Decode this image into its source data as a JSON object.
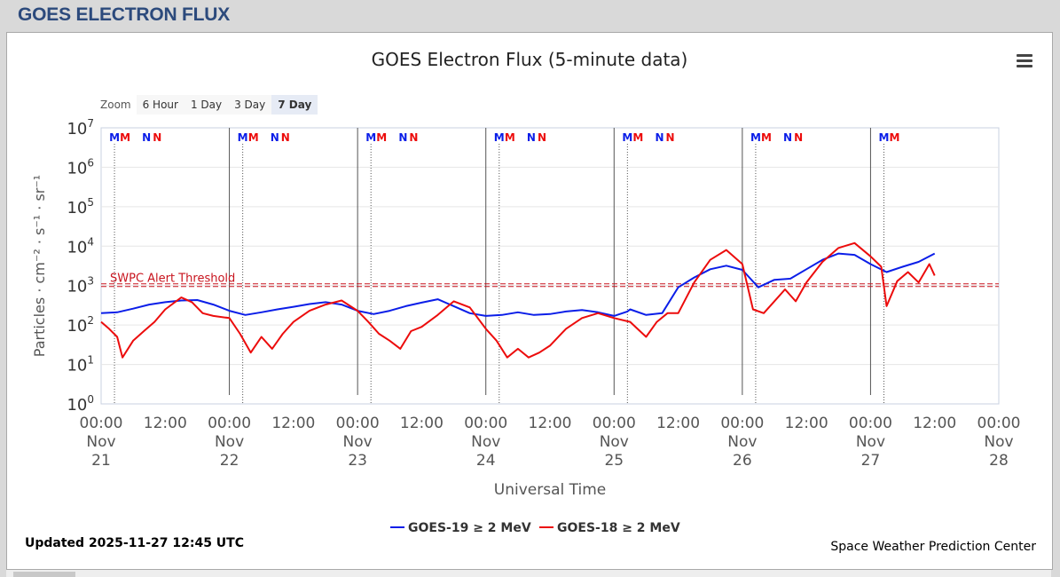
{
  "page": {
    "title": "GOES ELECTRON FLUX"
  },
  "chart": {
    "title": "GOES Electron Flux (5-minute data)",
    "updated": "Updated 2025-11-27 12:45 UTC",
    "credit": "Space Weather Prediction Center"
  },
  "zoom": {
    "label": "Zoom",
    "buttons": [
      "6 Hour",
      "1 Day",
      "3 Day",
      "7 Day"
    ],
    "active": "7 Day"
  },
  "colors": {
    "goes19": "#0b1ee8",
    "goes18": "#ec0c0c",
    "threshold": "#c8141e",
    "title": "#2c4a7c"
  },
  "chart_data": {
    "type": "line",
    "title": "GOES Electron Flux (5-minute data)",
    "xlabel": "Universal Time",
    "ylabel": "Particles · cm⁻² · s⁻¹ · sr⁻¹",
    "y_scale": "log",
    "ylim": [
      1,
      10000000
    ],
    "y_ticks": [
      {
        "base": "10",
        "exp": "0"
      },
      {
        "base": "10",
        "exp": "1"
      },
      {
        "base": "10",
        "exp": "2"
      },
      {
        "base": "10",
        "exp": "3"
      },
      {
        "base": "10",
        "exp": "4"
      },
      {
        "base": "10",
        "exp": "5"
      },
      {
        "base": "10",
        "exp": "6"
      },
      {
        "base": "10",
        "exp": "7"
      }
    ],
    "xlim": [
      "2025-11-21 00:00",
      "2025-11-28 00:00"
    ],
    "x_ticks": [
      {
        "t": "2025-11-21 00:00",
        "time": "00:00",
        "month": "Nov",
        "day": "21"
      },
      {
        "t": "2025-11-21 12:00",
        "time": "12:00"
      },
      {
        "t": "2025-11-22 00:00",
        "time": "00:00",
        "month": "Nov",
        "day": "22"
      },
      {
        "t": "2025-11-22 12:00",
        "time": "12:00"
      },
      {
        "t": "2025-11-23 00:00",
        "time": "00:00",
        "month": "Nov",
        "day": "23"
      },
      {
        "t": "2025-11-23 12:00",
        "time": "12:00"
      },
      {
        "t": "2025-11-24 00:00",
        "time": "00:00",
        "month": "Nov",
        "day": "24"
      },
      {
        "t": "2025-11-24 12:00",
        "time": "12:00"
      },
      {
        "t": "2025-11-25 00:00",
        "time": "00:00",
        "month": "Nov",
        "day": "25"
      },
      {
        "t": "2025-11-25 12:00",
        "time": "12:00"
      },
      {
        "t": "2025-11-26 00:00",
        "time": "00:00",
        "month": "Nov",
        "day": "26"
      },
      {
        "t": "2025-11-26 12:00",
        "time": "12:00"
      },
      {
        "t": "2025-11-27 00:00",
        "time": "00:00",
        "month": "Nov",
        "day": "27"
      },
      {
        "t": "2025-11-27 12:00",
        "time": "12:00"
      },
      {
        "t": "2025-11-28 00:00",
        "time": "00:00",
        "month": "Nov",
        "day": "28"
      }
    ],
    "threshold": {
      "label": "SWPC Alert Threshold",
      "value": 1000
    },
    "markers": [
      {
        "label": "M",
        "color": "#0b1ee8",
        "t": "2025-11-21 02:30"
      },
      {
        "label": "M",
        "color": "#ec0c0c",
        "t": "2025-11-21 04:30"
      },
      {
        "label": "N",
        "color": "#0b1ee8",
        "t": "2025-11-21 08:30"
      },
      {
        "label": "N",
        "color": "#ec0c0c",
        "t": "2025-11-21 10:30"
      },
      {
        "label": "M",
        "color": "#0b1ee8",
        "t": "2025-11-22 02:30"
      },
      {
        "label": "M",
        "color": "#ec0c0c",
        "t": "2025-11-22 04:30"
      },
      {
        "label": "N",
        "color": "#0b1ee8",
        "t": "2025-11-22 08:30"
      },
      {
        "label": "N",
        "color": "#ec0c0c",
        "t": "2025-11-22 10:30"
      },
      {
        "label": "M",
        "color": "#0b1ee8",
        "t": "2025-11-23 02:30"
      },
      {
        "label": "M",
        "color": "#ec0c0c",
        "t": "2025-11-23 04:30"
      },
      {
        "label": "N",
        "color": "#0b1ee8",
        "t": "2025-11-23 08:30"
      },
      {
        "label": "N",
        "color": "#ec0c0c",
        "t": "2025-11-23 10:30"
      },
      {
        "label": "M",
        "color": "#0b1ee8",
        "t": "2025-11-24 02:30"
      },
      {
        "label": "M",
        "color": "#ec0c0c",
        "t": "2025-11-24 04:30"
      },
      {
        "label": "N",
        "color": "#0b1ee8",
        "t": "2025-11-24 08:30"
      },
      {
        "label": "N",
        "color": "#ec0c0c",
        "t": "2025-11-24 10:30"
      },
      {
        "label": "M",
        "color": "#0b1ee8",
        "t": "2025-11-25 02:30"
      },
      {
        "label": "M",
        "color": "#ec0c0c",
        "t": "2025-11-25 04:30"
      },
      {
        "label": "N",
        "color": "#0b1ee8",
        "t": "2025-11-25 08:30"
      },
      {
        "label": "N",
        "color": "#ec0c0c",
        "t": "2025-11-25 10:30"
      },
      {
        "label": "M",
        "color": "#0b1ee8",
        "t": "2025-11-26 02:30"
      },
      {
        "label": "M",
        "color": "#ec0c0c",
        "t": "2025-11-26 04:30"
      },
      {
        "label": "N",
        "color": "#0b1ee8",
        "t": "2025-11-26 08:30"
      },
      {
        "label": "N",
        "color": "#ec0c0c",
        "t": "2025-11-26 10:30"
      },
      {
        "label": "M",
        "color": "#0b1ee8",
        "t": "2025-11-27 02:30"
      },
      {
        "label": "M",
        "color": "#ec0c0c",
        "t": "2025-11-27 04:30"
      }
    ],
    "series": [
      {
        "name": "GOES-19 ≥ 2 MeV",
        "color": "#0b1ee8",
        "points": [
          [
            "2025-11-21 00:00",
            200
          ],
          [
            "2025-11-21 03:00",
            210
          ],
          [
            "2025-11-21 06:00",
            260
          ],
          [
            "2025-11-21 09:00",
            330
          ],
          [
            "2025-11-21 12:00",
            380
          ],
          [
            "2025-11-21 15:00",
            420
          ],
          [
            "2025-11-21 18:00",
            430
          ],
          [
            "2025-11-21 21:00",
            330
          ],
          [
            "2025-11-22 00:00",
            230
          ],
          [
            "2025-11-22 03:00",
            180
          ],
          [
            "2025-11-22 06:00",
            210
          ],
          [
            "2025-11-22 09:00",
            250
          ],
          [
            "2025-11-22 12:00",
            290
          ],
          [
            "2025-11-22 15:00",
            340
          ],
          [
            "2025-11-22 18:00",
            380
          ],
          [
            "2025-11-22 21:00",
            330
          ],
          [
            "2025-11-23 00:00",
            230
          ],
          [
            "2025-11-23 03:00",
            190
          ],
          [
            "2025-11-23 06:00",
            230
          ],
          [
            "2025-11-23 09:00",
            300
          ],
          [
            "2025-11-23 12:00",
            370
          ],
          [
            "2025-11-23 15:00",
            450
          ],
          [
            "2025-11-23 18:00",
            300
          ],
          [
            "2025-11-23 21:00",
            200
          ],
          [
            "2025-11-24 00:00",
            170
          ],
          [
            "2025-11-24 03:00",
            180
          ],
          [
            "2025-11-24 06:00",
            210
          ],
          [
            "2025-11-24 09:00",
            180
          ],
          [
            "2025-11-24 12:00",
            190
          ],
          [
            "2025-11-24 15:00",
            220
          ],
          [
            "2025-11-24 18:00",
            240
          ],
          [
            "2025-11-24 21:00",
            210
          ],
          [
            "2025-11-25 00:00",
            170
          ],
          [
            "2025-11-25 02:30",
            220
          ],
          [
            "2025-11-25 03:00",
            250
          ],
          [
            "2025-11-25 06:00",
            180
          ],
          [
            "2025-11-25 09:00",
            200
          ],
          [
            "2025-11-25 12:00",
            900
          ],
          [
            "2025-11-25 15:00",
            1600
          ],
          [
            "2025-11-25 18:00",
            2600
          ],
          [
            "2025-11-25 21:00",
            3200
          ],
          [
            "2025-11-26 00:00",
            2500
          ],
          [
            "2025-11-26 03:00",
            900
          ],
          [
            "2025-11-26 06:00",
            1400
          ],
          [
            "2025-11-26 09:00",
            1500
          ],
          [
            "2025-11-26 12:00",
            2600
          ],
          [
            "2025-11-26 15:00",
            4500
          ],
          [
            "2025-11-26 18:00",
            6500
          ],
          [
            "2025-11-26 21:00",
            6000
          ],
          [
            "2025-11-27 00:00",
            3500
          ],
          [
            "2025-11-27 03:00",
            2200
          ],
          [
            "2025-11-27 06:00",
            3000
          ],
          [
            "2025-11-27 09:00",
            4000
          ],
          [
            "2025-11-27 12:00",
            6500
          ]
        ]
      },
      {
        "name": "GOES-18 ≥ 2 MeV",
        "color": "#ec0c0c",
        "points": [
          [
            "2025-11-21 00:00",
            120
          ],
          [
            "2025-11-21 01:30",
            80
          ],
          [
            "2025-11-21 03:00",
            50
          ],
          [
            "2025-11-21 04:00",
            15
          ],
          [
            "2025-11-21 06:00",
            40
          ],
          [
            "2025-11-21 08:00",
            70
          ],
          [
            "2025-11-21 10:00",
            120
          ],
          [
            "2025-11-21 12:00",
            250
          ],
          [
            "2025-11-21 15:00",
            500
          ],
          [
            "2025-11-21 17:00",
            380
          ],
          [
            "2025-11-21 19:00",
            200
          ],
          [
            "2025-11-21 21:00",
            170
          ],
          [
            "2025-11-22 00:00",
            150
          ],
          [
            "2025-11-22 02:00",
            60
          ],
          [
            "2025-11-22 04:00",
            20
          ],
          [
            "2025-11-22 06:00",
            50
          ],
          [
            "2025-11-22 08:00",
            25
          ],
          [
            "2025-11-22 10:00",
            60
          ],
          [
            "2025-11-22 12:00",
            120
          ],
          [
            "2025-11-22 15:00",
            230
          ],
          [
            "2025-11-22 18:00",
            330
          ],
          [
            "2025-11-22 21:00",
            420
          ],
          [
            "2025-11-23 00:00",
            230
          ],
          [
            "2025-11-23 02:00",
            120
          ],
          [
            "2025-11-23 04:00",
            60
          ],
          [
            "2025-11-23 06:00",
            40
          ],
          [
            "2025-11-23 08:00",
            25
          ],
          [
            "2025-11-23 10:00",
            70
          ],
          [
            "2025-11-23 12:00",
            90
          ],
          [
            "2025-11-23 15:00",
            180
          ],
          [
            "2025-11-23 18:00",
            400
          ],
          [
            "2025-11-23 21:00",
            280
          ],
          [
            "2025-11-24 00:00",
            80
          ],
          [
            "2025-11-24 02:00",
            40
          ],
          [
            "2025-11-24 04:00",
            15
          ],
          [
            "2025-11-24 06:00",
            25
          ],
          [
            "2025-11-24 08:00",
            15
          ],
          [
            "2025-11-24 10:00",
            20
          ],
          [
            "2025-11-24 12:00",
            30
          ],
          [
            "2025-11-24 15:00",
            80
          ],
          [
            "2025-11-24 18:00",
            150
          ],
          [
            "2025-11-24 21:00",
            200
          ],
          [
            "2025-11-25 00:00",
            150
          ],
          [
            "2025-11-25 03:00",
            120
          ],
          [
            "2025-11-25 06:00",
            50
          ],
          [
            "2025-11-25 08:00",
            120
          ],
          [
            "2025-11-25 10:00",
            200
          ],
          [
            "2025-11-25 12:00",
            200
          ],
          [
            "2025-11-25 15:00",
            1200
          ],
          [
            "2025-11-25 18:00",
            4500
          ],
          [
            "2025-11-25 21:00",
            8000
          ],
          [
            "2025-11-26 00:00",
            3500
          ],
          [
            "2025-11-26 02:00",
            250
          ],
          [
            "2025-11-26 04:00",
            200
          ],
          [
            "2025-11-26 06:00",
            400
          ],
          [
            "2025-11-26 08:00",
            800
          ],
          [
            "2025-11-26 10:00",
            400
          ],
          [
            "2025-11-26 12:00",
            1200
          ],
          [
            "2025-11-26 15:00",
            4000
          ],
          [
            "2025-11-26 18:00",
            9000
          ],
          [
            "2025-11-26 21:00",
            12000
          ],
          [
            "2025-11-27 00:00",
            5500
          ],
          [
            "2025-11-27 02:00",
            3000
          ],
          [
            "2025-11-27 03:00",
            300
          ],
          [
            "2025-11-27 05:00",
            1300
          ],
          [
            "2025-11-27 07:00",
            2200
          ],
          [
            "2025-11-27 09:00",
            1200
          ],
          [
            "2025-11-27 11:00",
            3500
          ],
          [
            "2025-11-27 12:00",
            1800
          ]
        ]
      }
    ]
  }
}
